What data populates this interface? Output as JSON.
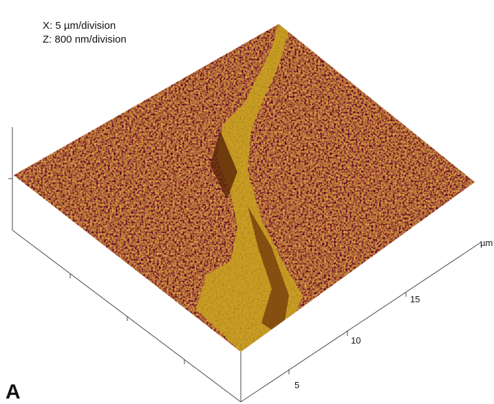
{
  "scale": {
    "x": "X: 5 µm/division",
    "z": "Z: 800 nm/division"
  },
  "axis": {
    "ticks": [
      "5",
      "10",
      "15"
    ],
    "unit": "µm"
  },
  "panel": "A"
}
